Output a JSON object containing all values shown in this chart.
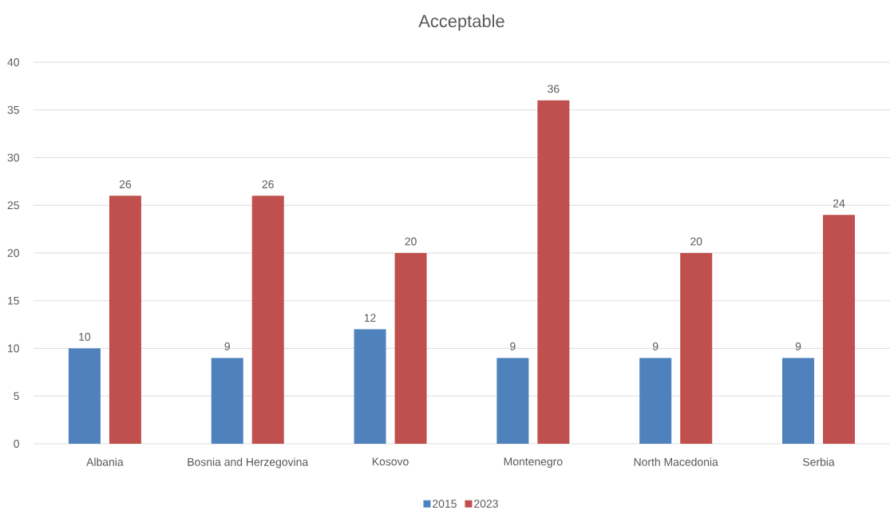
{
  "chart_data": {
    "type": "bar",
    "title": "Acceptable",
    "categories": [
      "Albania",
      "Bosnia and Herzegovina",
      "Kosovo",
      "Montenegro",
      "North Macedonia",
      "Serbia"
    ],
    "series": [
      {
        "name": "2015",
        "color": "#4f81bd",
        "values": [
          10,
          9,
          12,
          9,
          9,
          9
        ]
      },
      {
        "name": "2023",
        "color": "#c0504d",
        "values": [
          26,
          26,
          20,
          36,
          20,
          24
        ]
      }
    ],
    "ylim": [
      0,
      40
    ],
    "yticks": [
      0,
      5,
      10,
      15,
      20,
      25,
      30,
      35,
      40
    ],
    "grid": "y",
    "legend": "bottom",
    "data_labels": true
  }
}
